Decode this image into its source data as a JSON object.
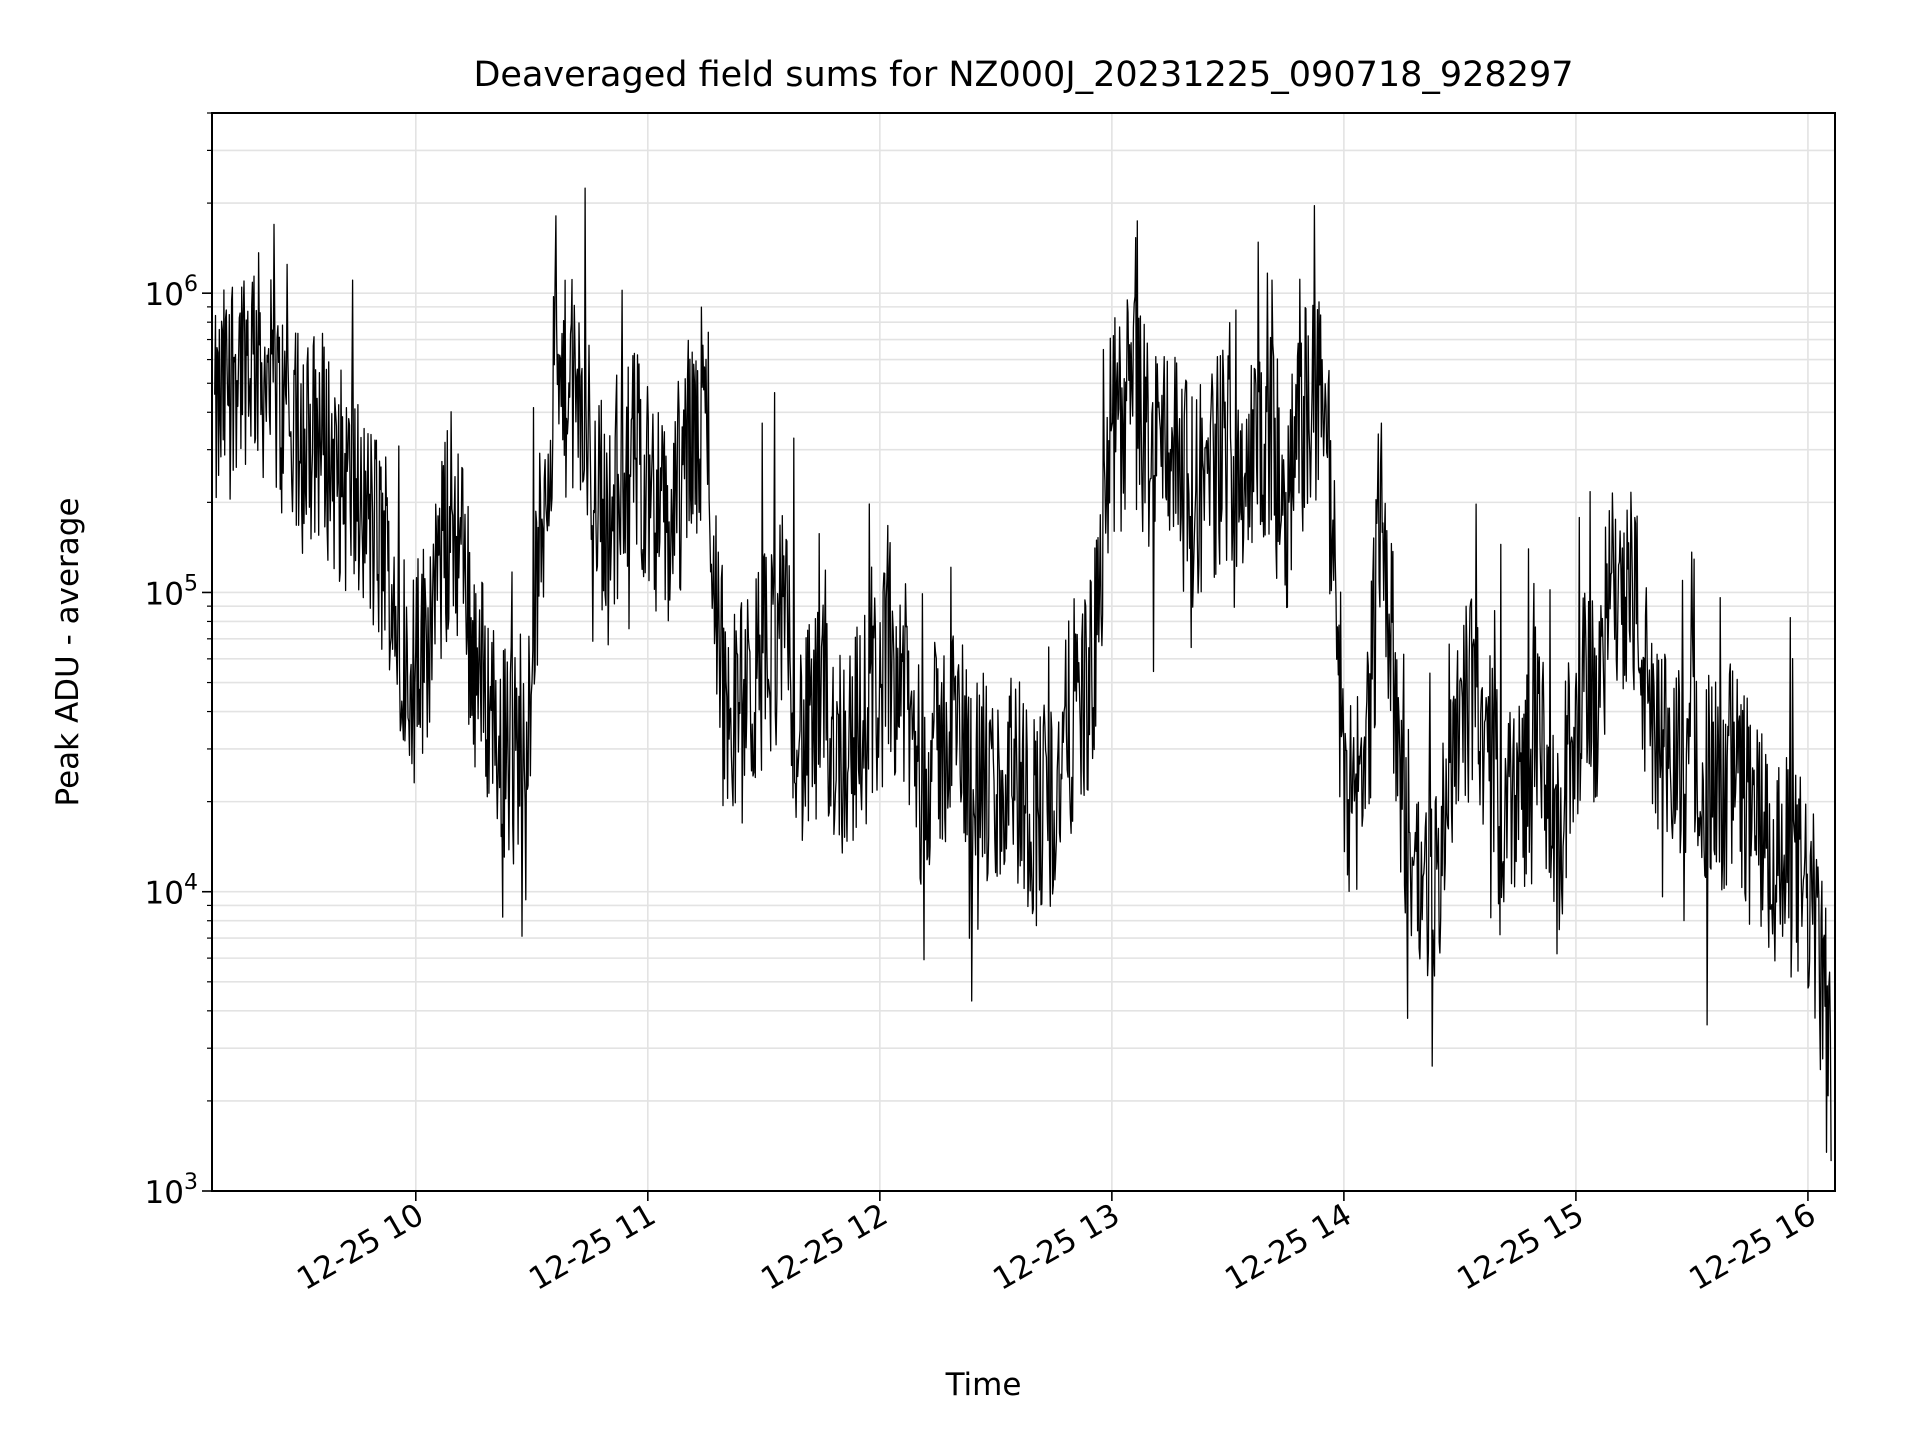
{
  "chart_data": {
    "type": "line",
    "title": "Deaveraged field sums for NZ000J_20231225_090718_928297",
    "xlabel": "Time",
    "ylabel": "Peak ADU - average",
    "yscale": "log",
    "ylim": [
      1000,
      4000000
    ],
    "xlim": [
      "2023-12-25 09:07:18",
      "2023-12-25 16:07:00"
    ],
    "grid": true,
    "legend": "none",
    "line_color": "#000000",
    "x_ticks": [
      "12-25 10",
      "12-25 11",
      "12-25 12",
      "12-25 13",
      "12-25 14",
      "12-25 15",
      "12-25 16"
    ],
    "x_tick_values": [
      "2023-12-25 10:00",
      "2023-12-25 11:00",
      "2023-12-25 12:00",
      "2023-12-25 13:00",
      "2023-12-25 14:00",
      "2023-12-25 15:00",
      "2023-12-25 16:00"
    ],
    "y_ticks": [
      {
        "value": 1000,
        "base": "10",
        "exp": "3"
      },
      {
        "value": 10000,
        "base": "10",
        "exp": "4"
      },
      {
        "value": 100000,
        "base": "10",
        "exp": "5"
      },
      {
        "value": 1000000,
        "base": "10",
        "exp": "6"
      }
    ],
    "series": [
      {
        "x": [
          "2023-12-25 09:08",
          "2023-12-25 09:13",
          "2023-12-25 09:18",
          "2023-12-25 09:25",
          "2023-12-25 09:30",
          "2023-12-25 09:35",
          "2023-12-25 09:40",
          "2023-12-25 09:45",
          "2023-12-25 09:50",
          "2023-12-25 09:55",
          "2023-12-25 10:00",
          "2023-12-25 10:05",
          "2023-12-25 10:10",
          "2023-12-25 10:15",
          "2023-12-25 10:20",
          "2023-12-25 10:25",
          "2023-12-25 10:30",
          "2023-12-25 10:35",
          "2023-12-25 10:40",
          "2023-12-25 10:45",
          "2023-12-25 10:50",
          "2023-12-25 10:55",
          "2023-12-25 11:00",
          "2023-12-25 11:05",
          "2023-12-25 11:10",
          "2023-12-25 11:15",
          "2023-12-25 11:20",
          "2023-12-25 11:25",
          "2023-12-25 11:30",
          "2023-12-25 11:35",
          "2023-12-25 11:40",
          "2023-12-25 11:45",
          "2023-12-25 11:50",
          "2023-12-25 11:55",
          "2023-12-25 12:00",
          "2023-12-25 12:05",
          "2023-12-25 12:10",
          "2023-12-25 12:15",
          "2023-12-25 12:20",
          "2023-12-25 12:25",
          "2023-12-25 12:30",
          "2023-12-25 12:35",
          "2023-12-25 12:40",
          "2023-12-25 12:45",
          "2023-12-25 12:50",
          "2023-12-25 12:55",
          "2023-12-25 13:00",
          "2023-12-25 13:05",
          "2023-12-25 13:10",
          "2023-12-25 13:15",
          "2023-12-25 13:20",
          "2023-12-25 13:25",
          "2023-12-25 13:30",
          "2023-12-25 13:35",
          "2023-12-25 13:40",
          "2023-12-25 13:45",
          "2023-12-25 13:50",
          "2023-12-25 13:55",
          "2023-12-25 14:00",
          "2023-12-25 14:05",
          "2023-12-25 14:10",
          "2023-12-25 14:15",
          "2023-12-25 14:20",
          "2023-12-25 14:25",
          "2023-12-25 14:30",
          "2023-12-25 14:35",
          "2023-12-25 14:40",
          "2023-12-25 14:45",
          "2023-12-25 14:50",
          "2023-12-25 14:55",
          "2023-12-25 15:00",
          "2023-12-25 15:05",
          "2023-12-25 15:10",
          "2023-12-25 15:15",
          "2023-12-25 15:20",
          "2023-12-25 15:25",
          "2023-12-25 15:30",
          "2023-12-25 15:35",
          "2023-12-25 15:40",
          "2023-12-25 15:45",
          "2023-12-25 15:50",
          "2023-12-25 15:55",
          "2023-12-25 16:00",
          "2023-12-25 16:04",
          "2023-12-25 16:06"
        ],
        "values": [
          350000,
          600000,
          650000,
          400000,
          300000,
          350000,
          250000,
          200000,
          150000,
          90000,
          50000,
          100000,
          200000,
          60000,
          40000,
          25000,
          60000,
          400000,
          500000,
          300000,
          150000,
          300000,
          250000,
          150000,
          300000,
          350000,
          40000,
          40000,
          60000,
          80000,
          30000,
          40000,
          30000,
          35000,
          50000,
          60000,
          25000,
          30000,
          35000,
          25000,
          20000,
          25000,
          18000,
          20000,
          40000,
          50000,
          350000,
          450000,
          300000,
          350000,
          200000,
          250000,
          300000,
          250000,
          350000,
          200000,
          400000,
          500000,
          25000,
          20000,
          200000,
          20000,
          10000,
          12000,
          50000,
          40000,
          20000,
          20000,
          35000,
          12000,
          45000,
          40000,
          120000,
          100000,
          30000,
          25000,
          35000,
          22000,
          25000,
          20000,
          12000,
          12000,
          10000,
          5000,
          2000
        ]
      }
    ]
  }
}
